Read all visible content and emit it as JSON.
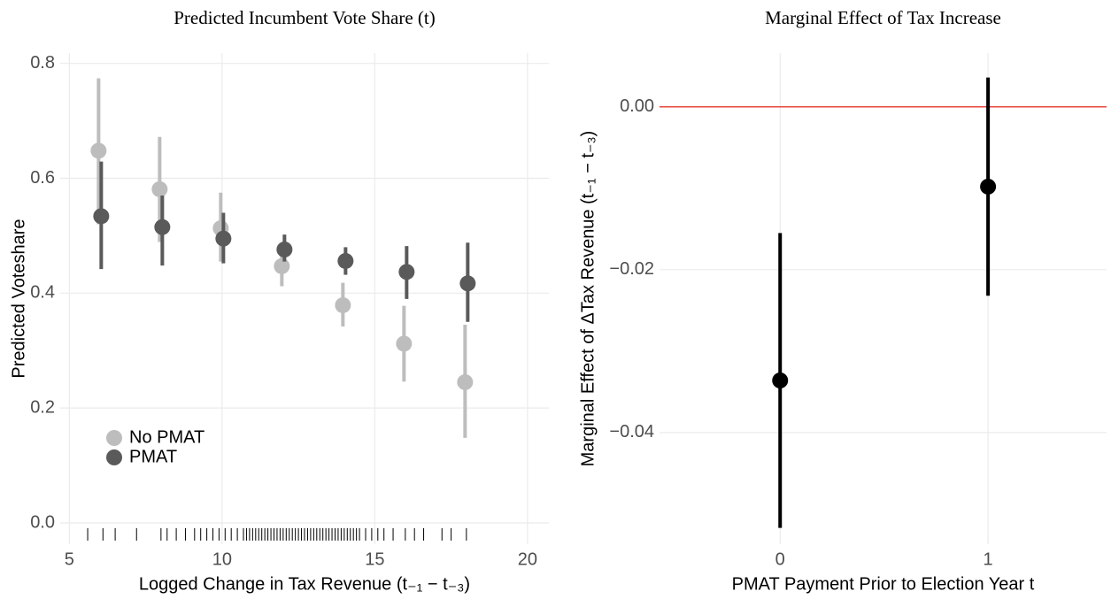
{
  "chart_data": [
    {
      "type": "pointrange",
      "title": "Predicted Incumbent Vote Share (t)",
      "xlabel": "Logged Change in Tax Revenue (t₋₁ − t₋₃)",
      "ylabel": "Predicted Voteshare",
      "x": [
        6,
        8,
        10,
        12,
        14,
        16,
        18
      ],
      "series": [
        {
          "name": "No PMAT",
          "color": "#bdbdbd",
          "values": [
            0.648,
            0.581,
            0.513,
            0.447,
            0.379,
            0.312,
            0.245
          ],
          "lower": [
            0.52,
            0.489,
            0.455,
            0.412,
            0.342,
            0.246,
            0.148
          ],
          "upper": [
            0.774,
            0.672,
            0.575,
            0.478,
            0.418,
            0.378,
            0.345
          ]
        },
        {
          "name": "PMAT",
          "color": "#5a5a5a",
          "values": [
            0.534,
            0.515,
            0.495,
            0.476,
            0.456,
            0.437,
            0.417
          ],
          "lower": [
            0.442,
            0.448,
            0.452,
            0.455,
            0.432,
            0.39,
            0.35
          ],
          "upper": [
            0.629,
            0.57,
            0.54,
            0.502,
            0.48,
            0.482,
            0.488
          ]
        }
      ],
      "rug": [
        5.6,
        6.1,
        6.5,
        7.2,
        8.0,
        8.2,
        8.5,
        8.8,
        9.1,
        9.3,
        9.5,
        9.7,
        9.9,
        10.1,
        10.3,
        10.5,
        10.7,
        10.8,
        10.9,
        11.0,
        11.1,
        11.2,
        11.3,
        11.4,
        11.5,
        11.6,
        11.7,
        11.8,
        11.9,
        12.0,
        12.1,
        12.2,
        12.3,
        12.4,
        12.5,
        12.6,
        12.7,
        12.8,
        12.9,
        13.0,
        13.1,
        13.2,
        13.3,
        13.4,
        13.5,
        13.6,
        13.7,
        13.8,
        13.9,
        14.0,
        14.1,
        14.2,
        14.3,
        14.4,
        14.5,
        14.7,
        14.9,
        15.1,
        15.3,
        15.6,
        16.0,
        16.3,
        16.6,
        17.2,
        17.5,
        18.0
      ],
      "xlim": [
        4.7,
        20.7
      ],
      "ylim": [
        -0.037,
        0.818
      ],
      "xticks": [
        5,
        10,
        15,
        20
      ],
      "yticks": [
        {
          "value": 0,
          "label": "0.0"
        },
        0.2,
        0.4,
        0.6,
        0.8
      ],
      "grid": true,
      "legend": "bottom-left"
    },
    {
      "type": "pointrange",
      "title": "Marginal Effect of Tax Increase",
      "xlabel": "PMAT Payment Prior to Election Year t",
      "ylabel": "Marginal Effect of ΔTax Revenue (t₋₁ − t₋₃)",
      "x": [
        0,
        1
      ],
      "series": [
        {
          "color": "#000000",
          "values": [
            -0.0336,
            -0.0098
          ],
          "lower": [
            -0.0517,
            -0.0232
          ],
          "upper": [
            -0.0155,
            0.0036
          ]
        }
      ],
      "hline": 0,
      "hline_color": "#e8473c",
      "xlim": [
        -0.58,
        1.57
      ],
      "ylim": [
        -0.0537,
        0.0066
      ],
      "xticks": [
        0,
        1
      ],
      "yticks": [
        {
          "value": -0.04,
          "label": "−0.04"
        },
        {
          "value": -0.02,
          "label": "−0.02"
        },
        {
          "value": 0,
          "label": "0.00"
        }
      ],
      "grid": true
    }
  ]
}
